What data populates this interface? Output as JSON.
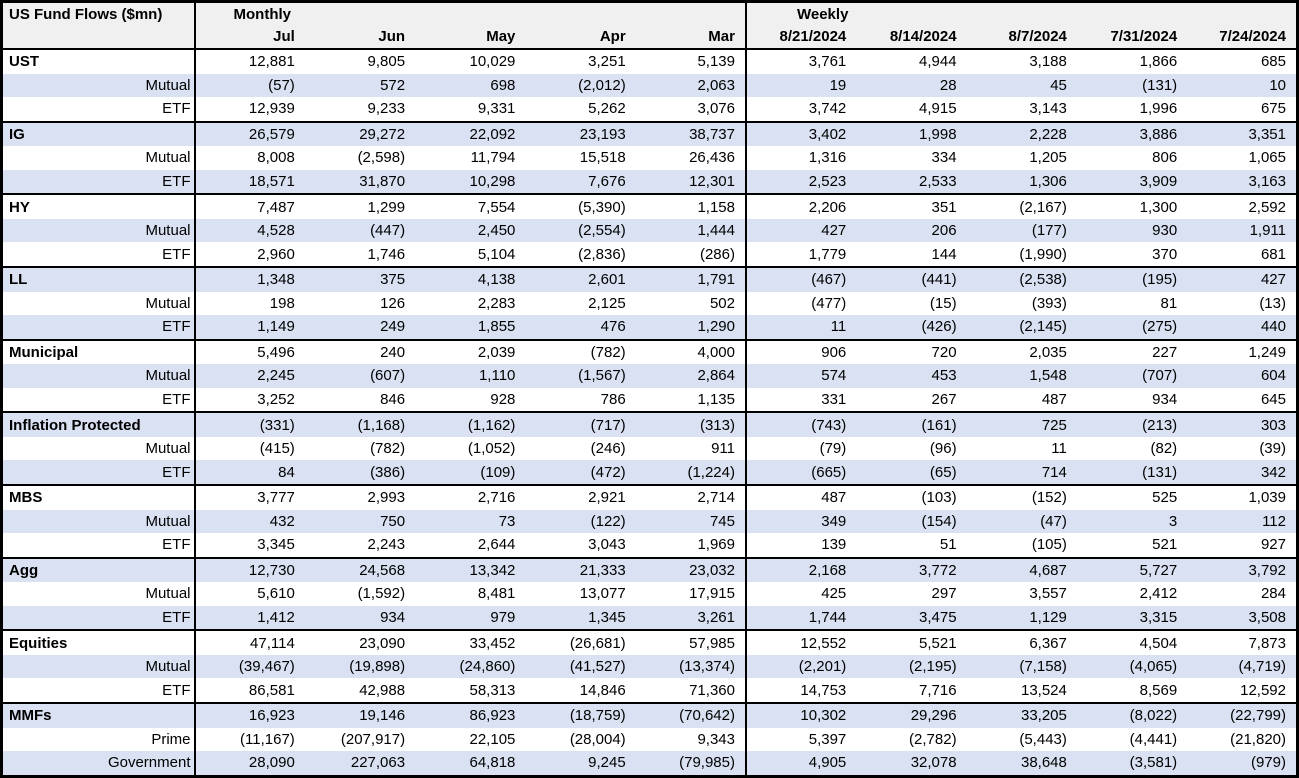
{
  "colors": {
    "row_shade": "#d9e1f2",
    "header_bg": "#f0f0f0",
    "border": "#000000",
    "text": "#000000"
  },
  "chart_data": {
    "type": "table",
    "title": "US Fund Flows ($mn)",
    "sections": [
      {
        "label": "Monthly",
        "columns": [
          "Jul",
          "Jun",
          "May",
          "Apr",
          "Mar"
        ]
      },
      {
        "label": "Weekly",
        "columns": [
          "8/21/2024",
          "8/14/2024",
          "8/7/2024",
          "7/31/2024",
          "7/24/2024"
        ]
      }
    ],
    "groups": [
      {
        "rows": [
          {
            "label": "UST",
            "bold": true,
            "monthly": [
              "12,881",
              "9,805",
              "10,029",
              "3,251",
              "5,139"
            ],
            "weekly": [
              "3,761",
              "4,944",
              "3,188",
              "1,866",
              "685"
            ]
          },
          {
            "label": "Mutual",
            "bold": false,
            "monthly": [
              "(57)",
              "572",
              "698",
              "(2,012)",
              "2,063"
            ],
            "weekly": [
              "19",
              "28",
              "45",
              "(131)",
              "10"
            ]
          },
          {
            "label": "ETF",
            "bold": false,
            "monthly": [
              "12,939",
              "9,233",
              "9,331",
              "5,262",
              "3,076"
            ],
            "weekly": [
              "3,742",
              "4,915",
              "3,143",
              "1,996",
              "675"
            ]
          }
        ]
      },
      {
        "rows": [
          {
            "label": "IG",
            "bold": true,
            "monthly": [
              "26,579",
              "29,272",
              "22,092",
              "23,193",
              "38,737"
            ],
            "weekly": [
              "3,402",
              "1,998",
              "2,228",
              "3,886",
              "3,351"
            ]
          },
          {
            "label": "Mutual",
            "bold": false,
            "monthly": [
              "8,008",
              "(2,598)",
              "11,794",
              "15,518",
              "26,436"
            ],
            "weekly": [
              "1,316",
              "334",
              "1,205",
              "806",
              "1,065"
            ]
          },
          {
            "label": "ETF",
            "bold": false,
            "monthly": [
              "18,571",
              "31,870",
              "10,298",
              "7,676",
              "12,301"
            ],
            "weekly": [
              "2,523",
              "2,533",
              "1,306",
              "3,909",
              "3,163"
            ]
          }
        ]
      },
      {
        "rows": [
          {
            "label": "HY",
            "bold": true,
            "monthly": [
              "7,487",
              "1,299",
              "7,554",
              "(5,390)",
              "1,158"
            ],
            "weekly": [
              "2,206",
              "351",
              "(2,167)",
              "1,300",
              "2,592"
            ]
          },
          {
            "label": "Mutual",
            "bold": false,
            "monthly": [
              "4,528",
              "(447)",
              "2,450",
              "(2,554)",
              "1,444"
            ],
            "weekly": [
              "427",
              "206",
              "(177)",
              "930",
              "1,911"
            ]
          },
          {
            "label": "ETF",
            "bold": false,
            "monthly": [
              "2,960",
              "1,746",
              "5,104",
              "(2,836)",
              "(286)"
            ],
            "weekly": [
              "1,779",
              "144",
              "(1,990)",
              "370",
              "681"
            ]
          }
        ]
      },
      {
        "rows": [
          {
            "label": "LL",
            "bold": true,
            "monthly": [
              "1,348",
              "375",
              "4,138",
              "2,601",
              "1,791"
            ],
            "weekly": [
              "(467)",
              "(441)",
              "(2,538)",
              "(195)",
              "427"
            ]
          },
          {
            "label": "Mutual",
            "bold": false,
            "monthly": [
              "198",
              "126",
              "2,283",
              "2,125",
              "502"
            ],
            "weekly": [
              "(477)",
              "(15)",
              "(393)",
              "81",
              "(13)"
            ]
          },
          {
            "label": "ETF",
            "bold": false,
            "monthly": [
              "1,149",
              "249",
              "1,855",
              "476",
              "1,290"
            ],
            "weekly": [
              "11",
              "(426)",
              "(2,145)",
              "(275)",
              "440"
            ]
          }
        ]
      },
      {
        "rows": [
          {
            "label": "Municipal",
            "bold": true,
            "monthly": [
              "5,496",
              "240",
              "2,039",
              "(782)",
              "4,000"
            ],
            "weekly": [
              "906",
              "720",
              "2,035",
              "227",
              "1,249"
            ]
          },
          {
            "label": "Mutual",
            "bold": false,
            "monthly": [
              "2,245",
              "(607)",
              "1,110",
              "(1,567)",
              "2,864"
            ],
            "weekly": [
              "574",
              "453",
              "1,548",
              "(707)",
              "604"
            ]
          },
          {
            "label": "ETF",
            "bold": false,
            "monthly": [
              "3,252",
              "846",
              "928",
              "786",
              "1,135"
            ],
            "weekly": [
              "331",
              "267",
              "487",
              "934",
              "645"
            ]
          }
        ]
      },
      {
        "rows": [
          {
            "label": "Inflation Protected",
            "bold": true,
            "monthly": [
              "(331)",
              "(1,168)",
              "(1,162)",
              "(717)",
              "(313)"
            ],
            "weekly": [
              "(743)",
              "(161)",
              "725",
              "(213)",
              "303"
            ]
          },
          {
            "label": "Mutual",
            "bold": false,
            "monthly": [
              "(415)",
              "(782)",
              "(1,052)",
              "(246)",
              "911"
            ],
            "weekly": [
              "(79)",
              "(96)",
              "11",
              "(82)",
              "(39)"
            ]
          },
          {
            "label": "ETF",
            "bold": false,
            "monthly": [
              "84",
              "(386)",
              "(109)",
              "(472)",
              "(1,224)"
            ],
            "weekly": [
              "(665)",
              "(65)",
              "714",
              "(131)",
              "342"
            ]
          }
        ]
      },
      {
        "rows": [
          {
            "label": "MBS",
            "bold": true,
            "monthly": [
              "3,777",
              "2,993",
              "2,716",
              "2,921",
              "2,714"
            ],
            "weekly": [
              "487",
              "(103)",
              "(152)",
              "525",
              "1,039"
            ]
          },
          {
            "label": "Mutual",
            "bold": false,
            "monthly": [
              "432",
              "750",
              "73",
              "(122)",
              "745"
            ],
            "weekly": [
              "349",
              "(154)",
              "(47)",
              "3",
              "112"
            ]
          },
          {
            "label": "ETF",
            "bold": false,
            "monthly": [
              "3,345",
              "2,243",
              "2,644",
              "3,043",
              "1,969"
            ],
            "weekly": [
              "139",
              "51",
              "(105)",
              "521",
              "927"
            ]
          }
        ]
      },
      {
        "rows": [
          {
            "label": "Agg",
            "bold": true,
            "monthly": [
              "12,730",
              "24,568",
              "13,342",
              "21,333",
              "23,032"
            ],
            "weekly": [
              "2,168",
              "3,772",
              "4,687",
              "5,727",
              "3,792"
            ]
          },
          {
            "label": "Mutual",
            "bold": false,
            "monthly": [
              "5,610",
              "(1,592)",
              "8,481",
              "13,077",
              "17,915"
            ],
            "weekly": [
              "425",
              "297",
              "3,557",
              "2,412",
              "284"
            ]
          },
          {
            "label": "ETF",
            "bold": false,
            "monthly": [
              "1,412",
              "934",
              "979",
              "1,345",
              "3,261"
            ],
            "weekly": [
              "1,744",
              "3,475",
              "1,129",
              "3,315",
              "3,508"
            ]
          }
        ]
      },
      {
        "rows": [
          {
            "label": "Equities",
            "bold": true,
            "monthly": [
              "47,114",
              "23,090",
              "33,452",
              "(26,681)",
              "57,985"
            ],
            "weekly": [
              "12,552",
              "5,521",
              "6,367",
              "4,504",
              "7,873"
            ]
          },
          {
            "label": "Mutual",
            "bold": false,
            "monthly": [
              "(39,467)",
              "(19,898)",
              "(24,860)",
              "(41,527)",
              "(13,374)"
            ],
            "weekly": [
              "(2,201)",
              "(2,195)",
              "(7,158)",
              "(4,065)",
              "(4,719)"
            ]
          },
          {
            "label": "ETF",
            "bold": false,
            "monthly": [
              "86,581",
              "42,988",
              "58,313",
              "14,846",
              "71,360"
            ],
            "weekly": [
              "14,753",
              "7,716",
              "13,524",
              "8,569",
              "12,592"
            ]
          }
        ]
      },
      {
        "rows": [
          {
            "label": "MMFs",
            "bold": true,
            "monthly": [
              "16,923",
              "19,146",
              "86,923",
              "(18,759)",
              "(70,642)"
            ],
            "weekly": [
              "10,302",
              "29,296",
              "33,205",
              "(8,022)",
              "(22,799)"
            ]
          },
          {
            "label": "Prime",
            "bold": false,
            "monthly": [
              "(11,167)",
              "(207,917)",
              "22,105",
              "(28,004)",
              "9,343"
            ],
            "weekly": [
              "5,397",
              "(2,782)",
              "(5,443)",
              "(4,441)",
              "(21,820)"
            ]
          },
          {
            "label": "Government",
            "bold": false,
            "monthly": [
              "28,090",
              "227,063",
              "64,818",
              "9,245",
              "(79,985)"
            ],
            "weekly": [
              "4,905",
              "32,078",
              "38,648",
              "(3,581)",
              "(979)"
            ]
          }
        ]
      }
    ]
  }
}
